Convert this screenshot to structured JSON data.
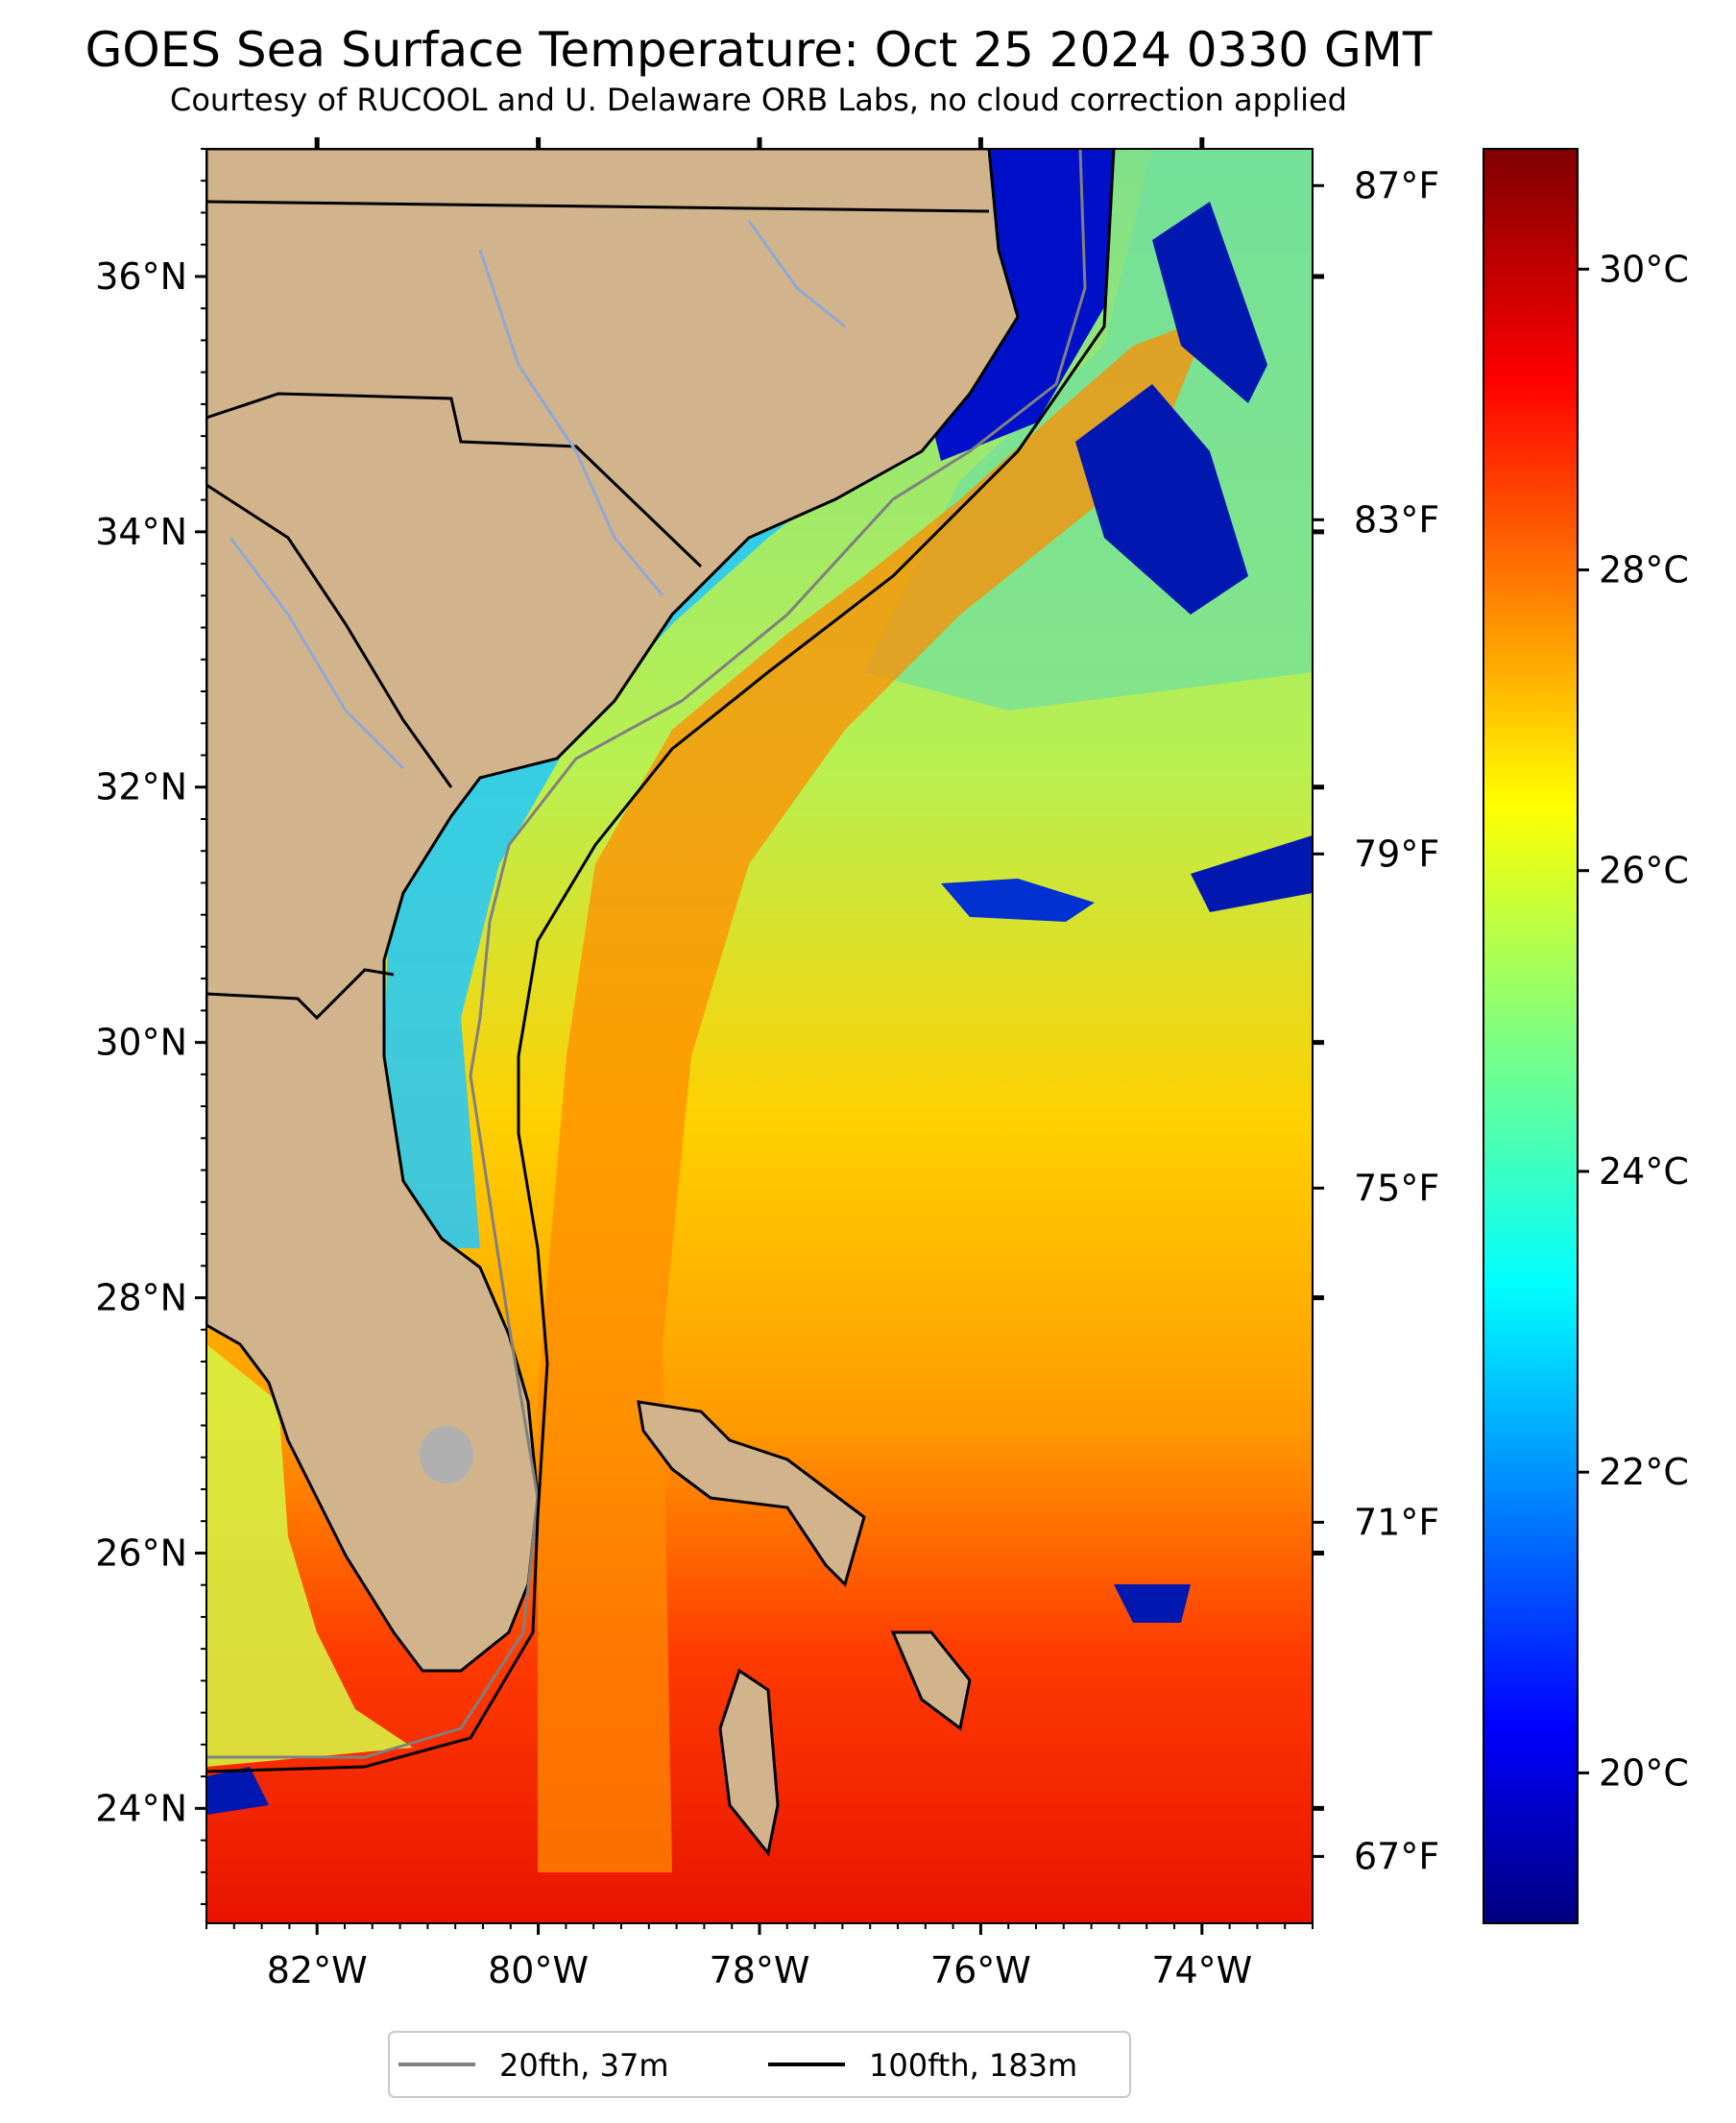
{
  "title": "GOES Sea Surface Temperature: Oct 25 2024 0330 GMT",
  "subtitle": "Courtesy of RUCOOL and U. Delaware ORB Labs, no cloud correction applied",
  "map": {
    "lon_range": [
      -83,
      -73
    ],
    "lat_range": [
      23.1,
      37
    ],
    "lat_ticks": [
      {
        "value": 36,
        "label": "36°N"
      },
      {
        "value": 34,
        "label": "34°N"
      },
      {
        "value": 32,
        "label": "32°N"
      },
      {
        "value": 30,
        "label": "30°N"
      },
      {
        "value": 28,
        "label": "28°N"
      },
      {
        "value": 26,
        "label": "26°N"
      },
      {
        "value": 24,
        "label": "24°N"
      }
    ],
    "lon_ticks": [
      {
        "value": -82,
        "label": "82°W"
      },
      {
        "value": -80,
        "label": "80°W"
      },
      {
        "value": -78,
        "label": "78°W"
      },
      {
        "value": -76,
        "label": "76°W"
      },
      {
        "value": -74,
        "label": "74°W"
      }
    ],
    "fahrenheit_ticks": [
      {
        "value": 87,
        "label": "87°F"
      },
      {
        "value": 83,
        "label": "83°F"
      },
      {
        "value": 79,
        "label": "79°F"
      },
      {
        "value": 75,
        "label": "75°F"
      },
      {
        "value": 71,
        "label": "71°F"
      },
      {
        "value": 67,
        "label": "67°F"
      }
    ],
    "land_color": "#d2b48c",
    "river_color": "#8fa8d4"
  },
  "colorbar": {
    "colormap": "jet",
    "range_c": [
      19,
      30.8
    ],
    "ticks": [
      {
        "value": 30,
        "label": "30°C"
      },
      {
        "value": 28,
        "label": "28°C"
      },
      {
        "value": 26,
        "label": "26°C"
      },
      {
        "value": 24,
        "label": "24°C"
      },
      {
        "value": 22,
        "label": "22°C"
      },
      {
        "value": 20,
        "label": "20°C"
      }
    ]
  },
  "legend": {
    "items": [
      {
        "label": "20fth, 37m",
        "color": "#808080"
      },
      {
        "label": "100fth, 183m",
        "color": "#000000"
      }
    ]
  }
}
